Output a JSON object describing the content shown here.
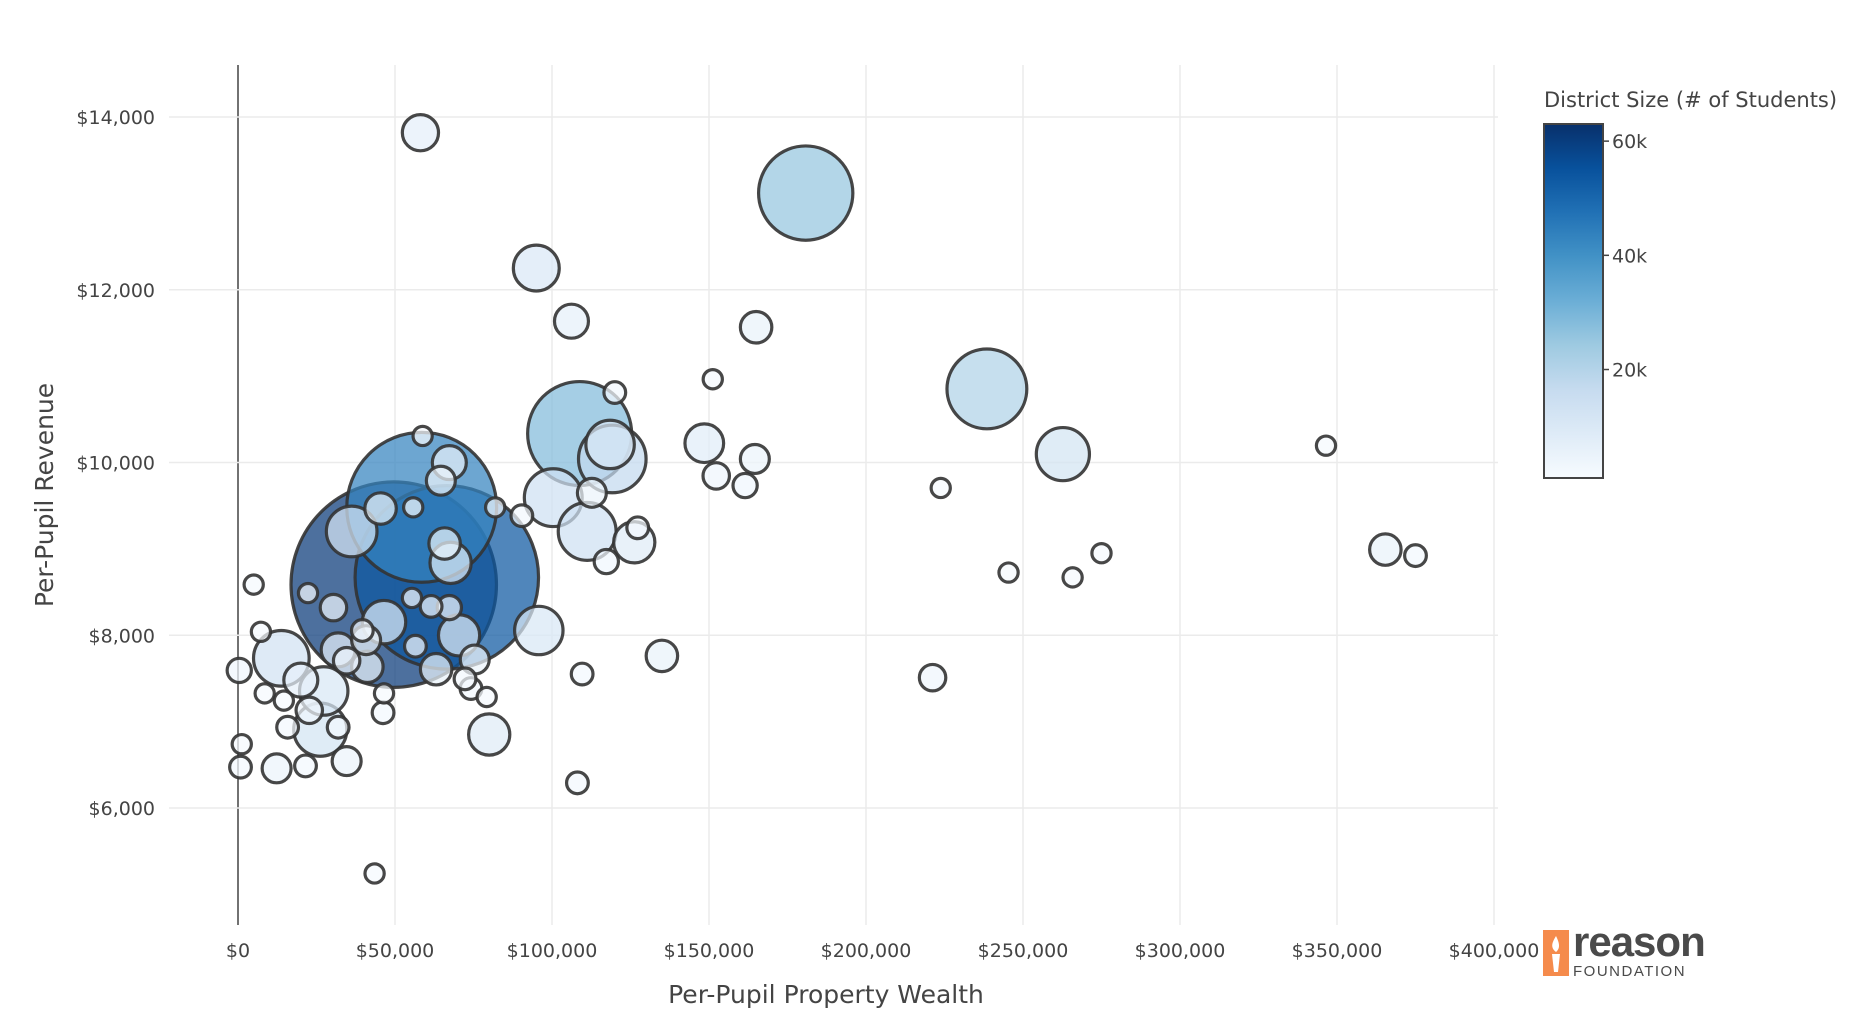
{
  "chart_data": {
    "type": "scatter",
    "title": "",
    "xlabel": "Per-Pupil Property Wealth",
    "ylabel": "Per-Pupil Revenue",
    "xlim": [
      0,
      400000
    ],
    "ylim": [
      4800,
      14600
    ],
    "x_ticks": [
      0,
      50000,
      100000,
      150000,
      200000,
      250000,
      300000,
      350000,
      400000
    ],
    "x_tick_labels": [
      "$0",
      "$50,000",
      "$100,000",
      "$150,000",
      "$200,000",
      "$250,000",
      "$300,000",
      "$350,000",
      "$400,000"
    ],
    "y_ticks": [
      6000,
      8000,
      10000,
      12000,
      14000
    ],
    "y_tick_labels": [
      "$6,000",
      "$8,000",
      "$10,000",
      "$12,000",
      "$14,000"
    ],
    "grid": true,
    "colorbar": {
      "title": "District Size (# of Students)",
      "range": [
        1000,
        63000
      ],
      "ticks": [
        20000,
        40000,
        60000
      ],
      "tick_labels": [
        "20k",
        "40k",
        "60k"
      ],
      "colorscale": "Blues",
      "placement": "right"
    },
    "marker_line_color": "#333333",
    "columns": [
      "property_wealth",
      "revenue",
      "students"
    ],
    "points": [
      [
        58100,
        13818,
        6900
      ],
      [
        180800,
        13119,
        25400
      ],
      [
        95000,
        12251,
        10000
      ],
      [
        106200,
        11636,
        6200
      ],
      [
        165000,
        11566,
        5400
      ],
      [
        151200,
        10964,
        1500
      ],
      [
        120000,
        10810,
        2300
      ],
      [
        238500,
        10852,
        20800
      ],
      [
        108800,
        10335,
        28500
      ],
      [
        148500,
        10223,
        7700
      ],
      [
        346500,
        10195,
        1500
      ],
      [
        262700,
        10097,
        12300
      ],
      [
        119200,
        10041,
        16900
      ],
      [
        118500,
        10209,
        10800
      ],
      [
        164600,
        10041,
        4600
      ],
      [
        152300,
        9845,
        3800
      ],
      [
        161500,
        9733,
        3100
      ],
      [
        223800,
        9705,
        1500
      ],
      [
        100400,
        9593,
        13800
      ],
      [
        112700,
        9649,
        4600
      ],
      [
        90400,
        9384,
        2300
      ],
      [
        111200,
        9202,
        13800
      ],
      [
        126200,
        9076,
        8500
      ],
      [
        127300,
        9244,
        2300
      ],
      [
        117300,
        8853,
        3100
      ],
      [
        245400,
        8726,
        1500
      ],
      [
        265800,
        8670,
        1500
      ],
      [
        275000,
        8950,
        1500
      ],
      [
        365400,
        8992,
        5400
      ],
      [
        375000,
        8922,
        2300
      ],
      [
        58500,
        9481,
        43100
      ],
      [
        49600,
        8586,
        60800
      ],
      [
        66500,
        8670,
        53800
      ],
      [
        58800,
        10307,
        1500
      ],
      [
        67300,
        9999,
        6200
      ],
      [
        64600,
        9789,
        4600
      ],
      [
        55800,
        9481,
        1500
      ],
      [
        45400,
        9467,
        5400
      ],
      [
        36200,
        9202,
        11500
      ],
      [
        65800,
        9062,
        5400
      ],
      [
        67700,
        8838,
        8500
      ],
      [
        61500,
        8334,
        2300
      ],
      [
        67300,
        8320,
        3100
      ],
      [
        70400,
        7999,
        8500
      ],
      [
        95800,
        8055,
        10800
      ],
      [
        55400,
        8432,
        1500
      ],
      [
        46500,
        8152,
        9200
      ],
      [
        39600,
        8055,
        2300
      ],
      [
        40800,
        7943,
        4600
      ],
      [
        30400,
        8320,
        3800
      ],
      [
        56500,
        7873,
        2300
      ],
      [
        75400,
        7719,
        4600
      ],
      [
        63100,
        7607,
        5400
      ],
      [
        41200,
        7635,
        5400
      ],
      [
        34600,
        7705,
        3800
      ],
      [
        31900,
        7831,
        6200
      ],
      [
        13800,
        7733,
        13100
      ],
      [
        22300,
        8488,
        1500
      ],
      [
        5000,
        8586,
        1500
      ],
      [
        7300,
        8040,
        1500
      ],
      [
        400,
        7593,
        3100
      ],
      [
        8500,
        7327,
        1500
      ],
      [
        14600,
        7243,
        1500
      ],
      [
        27300,
        7355,
        10800
      ],
      [
        20000,
        7481,
        6200
      ],
      [
        22700,
        7131,
        3800
      ],
      [
        26200,
        6907,
        12300
      ],
      [
        34600,
        6543,
        4600
      ],
      [
        12300,
        6459,
        4600
      ],
      [
        21500,
        6487,
        2300
      ],
      [
        1200,
        6739,
        1500
      ],
      [
        800,
        6473,
        2300
      ],
      [
        15800,
        6935,
        2300
      ],
      [
        31900,
        6935,
        2300
      ],
      [
        46500,
        7327,
        1500
      ],
      [
        46200,
        7103,
        2300
      ],
      [
        74200,
        7383,
        2300
      ],
      [
        79200,
        7285,
        1500
      ],
      [
        72300,
        7495,
        2300
      ],
      [
        80000,
        6851,
        8500
      ],
      [
        109600,
        7551,
        2300
      ],
      [
        135000,
        7761,
        5400
      ],
      [
        221200,
        7509,
        3800
      ],
      [
        108100,
        6291,
        2300
      ],
      [
        43500,
        5242,
        1500
      ],
      [
        81900,
        9481,
        1500
      ]
    ]
  },
  "logo": {
    "word": "reason",
    "sub": "FOUNDATION"
  }
}
